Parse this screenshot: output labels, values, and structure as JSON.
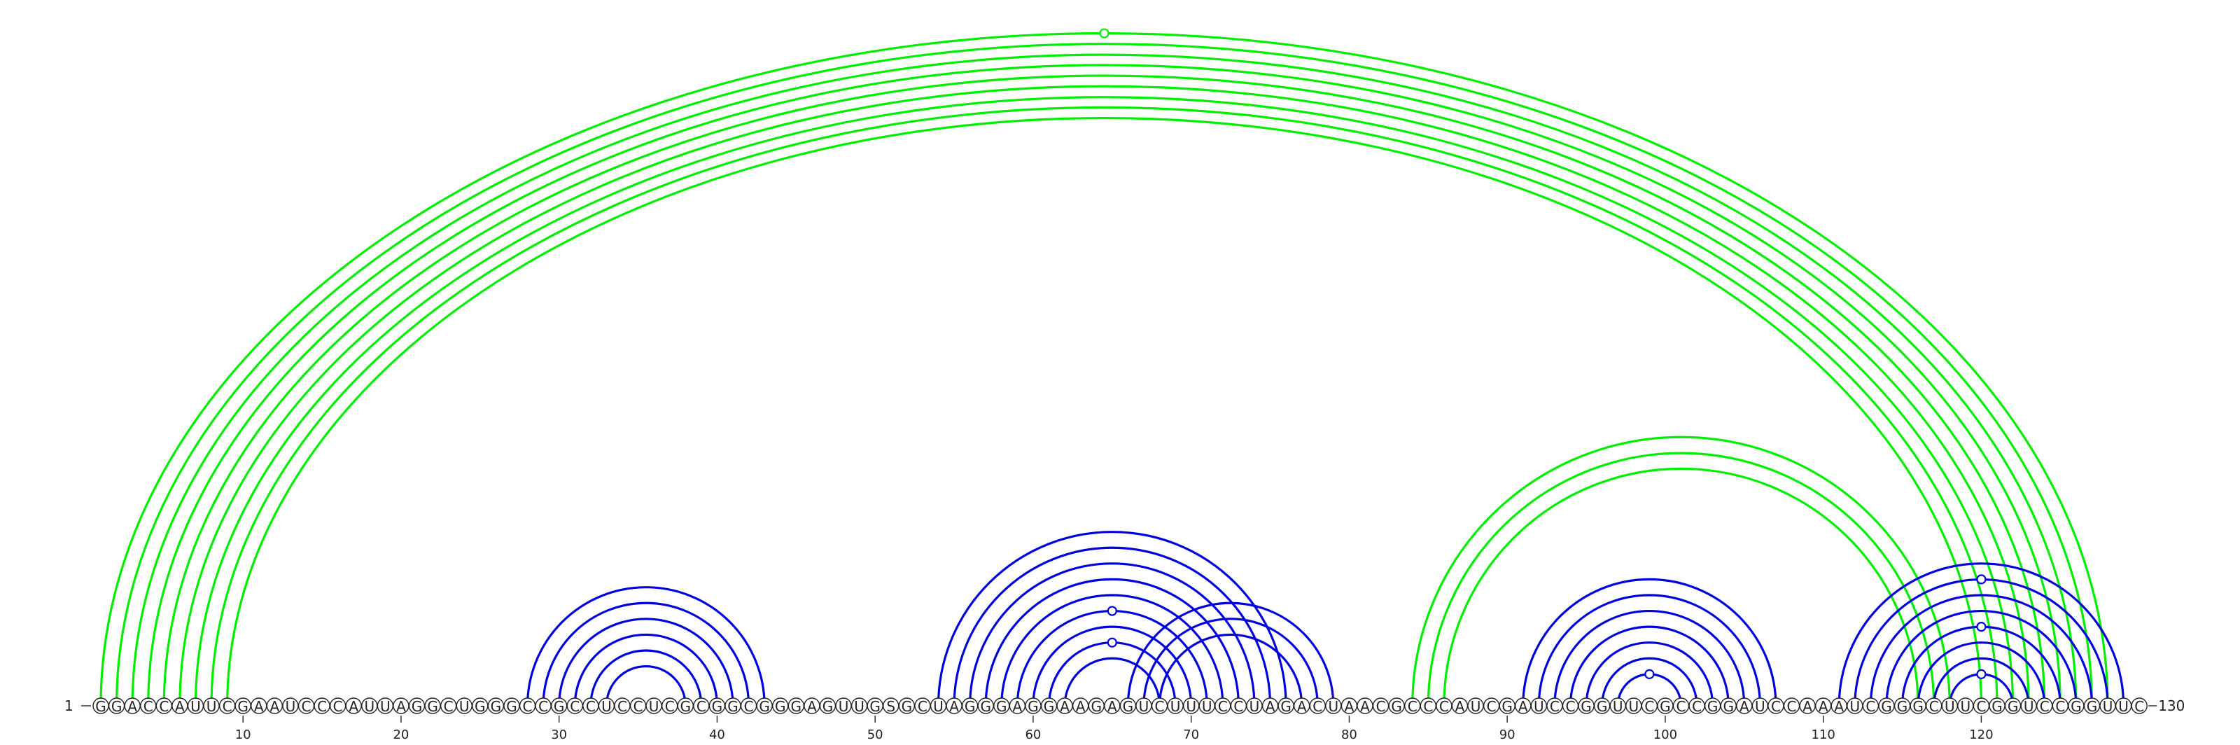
{
  "chart_data": {
    "type": "arc-diagram",
    "sequence": "GGACCAUUCGAAUCCCAUUAGGCUGGGCCGCCUCCUCGCGGCGGGAGUUGSGCUAGGGAGGAAGAGUCUUUCCUAGACUAACGCCCAUCGAUCCGGUUCGCCGGAUCCAAAUCGGGCUUCGGUCCGGUUC",
    "length": 130,
    "start_label": "1",
    "end_label": "130",
    "ticks": [
      10,
      20,
      30,
      40,
      50,
      60,
      70,
      80,
      90,
      100,
      110,
      120
    ],
    "colors": {
      "blue": "#0000dd",
      "green": "#00ee00",
      "text": "#222222"
    },
    "arcs": [
      {
        "i": 1,
        "j": 128,
        "color": "green"
      },
      {
        "i": 2,
        "j": 127,
        "color": "green"
      },
      {
        "i": 3,
        "j": 126,
        "color": "green"
      },
      {
        "i": 4,
        "j": 125,
        "color": "green"
      },
      {
        "i": 5,
        "j": 124,
        "color": "green"
      },
      {
        "i": 6,
        "j": 123,
        "color": "green"
      },
      {
        "i": 7,
        "j": 122,
        "color": "green"
      },
      {
        "i": 8,
        "j": 121,
        "color": "green"
      },
      {
        "i": 9,
        "j": 120,
        "color": "green"
      },
      {
        "i": 84,
        "j": 118,
        "color": "green"
      },
      {
        "i": 85,
        "j": 117,
        "color": "green"
      },
      {
        "i": 86,
        "j": 116,
        "color": "green"
      },
      {
        "i": 28,
        "j": 43,
        "color": "blue"
      },
      {
        "i": 29,
        "j": 42,
        "color": "blue"
      },
      {
        "i": 30,
        "j": 41,
        "color": "blue"
      },
      {
        "i": 31,
        "j": 40,
        "color": "blue"
      },
      {
        "i": 32,
        "j": 39,
        "color": "blue"
      },
      {
        "i": 33,
        "j": 38,
        "color": "blue"
      },
      {
        "i": 54,
        "j": 76,
        "color": "blue"
      },
      {
        "i": 55,
        "j": 75,
        "color": "blue"
      },
      {
        "i": 56,
        "j": 74,
        "color": "blue"
      },
      {
        "i": 57,
        "j": 73,
        "color": "blue"
      },
      {
        "i": 58,
        "j": 72,
        "color": "blue"
      },
      {
        "i": 59,
        "j": 71,
        "color": "blue"
      },
      {
        "i": 60,
        "j": 70,
        "color": "blue"
      },
      {
        "i": 61,
        "j": 69,
        "color": "blue"
      },
      {
        "i": 62,
        "j": 68,
        "color": "blue"
      },
      {
        "i": 66,
        "j": 79,
        "color": "blue"
      },
      {
        "i": 67,
        "j": 78,
        "color": "blue"
      },
      {
        "i": 68,
        "j": 77,
        "color": "blue"
      },
      {
        "i": 91,
        "j": 107,
        "color": "blue"
      },
      {
        "i": 92,
        "j": 106,
        "color": "blue"
      },
      {
        "i": 93,
        "j": 105,
        "color": "blue"
      },
      {
        "i": 94,
        "j": 104,
        "color": "blue"
      },
      {
        "i": 95,
        "j": 103,
        "color": "blue"
      },
      {
        "i": 96,
        "j": 102,
        "color": "blue"
      },
      {
        "i": 97,
        "j": 101,
        "color": "blue"
      },
      {
        "i": 111,
        "j": 129,
        "color": "blue"
      },
      {
        "i": 112,
        "j": 128,
        "color": "blue"
      },
      {
        "i": 113,
        "j": 127,
        "color": "blue"
      },
      {
        "i": 114,
        "j": 126,
        "color": "blue"
      },
      {
        "i": 115,
        "j": 125,
        "color": "blue"
      },
      {
        "i": 116,
        "j": 124,
        "color": "blue"
      },
      {
        "i": 117,
        "j": 123,
        "color": "blue"
      },
      {
        "i": 118,
        "j": 122,
        "color": "blue"
      }
    ],
    "markers": [
      {
        "i": 1,
        "j": 128,
        "color": "green"
      },
      {
        "i": 59,
        "j": 71,
        "color": "blue"
      },
      {
        "i": 61,
        "j": 69,
        "color": "blue"
      },
      {
        "i": 97,
        "j": 101,
        "color": "blue"
      },
      {
        "i": 112,
        "j": 128,
        "color": "blue"
      },
      {
        "i": 115,
        "j": 125,
        "color": "blue"
      },
      {
        "i": 118,
        "j": 122,
        "color": "blue"
      }
    ]
  }
}
